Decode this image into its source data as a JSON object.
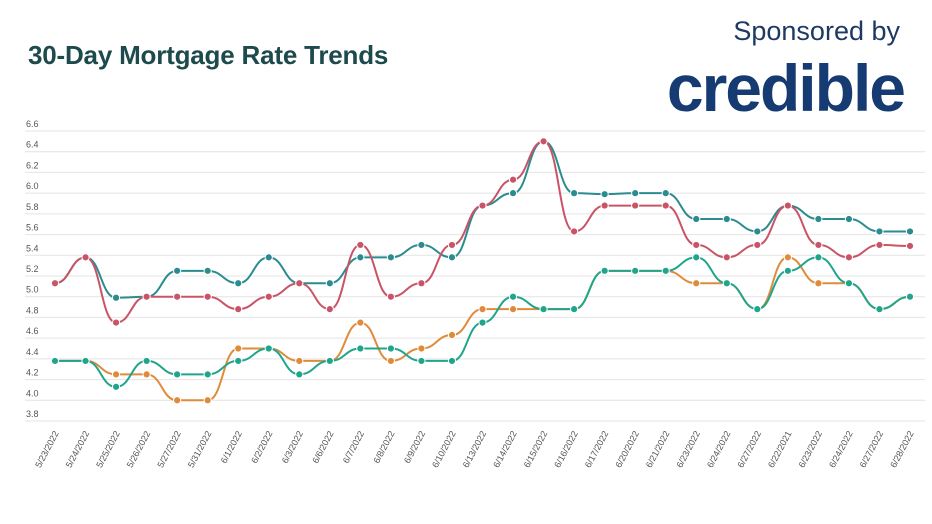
{
  "header": {
    "title": "30-Day Mortgage Rate Trends",
    "sponsor_label": "Sponsored by",
    "sponsor_logo": "credible"
  },
  "colors": {
    "title": "#1d4a4c",
    "brand": "#163a72"
  },
  "chart_data": {
    "type": "line",
    "title": "30-Day Mortgage Rate Trends",
    "xlabel": "",
    "ylabel": "",
    "ylim": [
      3.8,
      6.6
    ],
    "yticks": [
      "6.6",
      "6.4",
      "6.2",
      "6.0",
      "5.8",
      "5.6",
      "5.4",
      "5.2",
      "5.0",
      "4.8",
      "4.6",
      "4.4",
      "4.2",
      "4.0",
      "3.8"
    ],
    "grid": true,
    "legend": "none",
    "categories": [
      "5/23/2022",
      "5/24/2022",
      "5/25/2022",
      "5/26/2022",
      "5/27/2022",
      "5/31/2022",
      "6/1/2022",
      "6/2/2022",
      "6/3/2022",
      "6/6/2022",
      "6/7/2022",
      "6/8/2022",
      "6/9/2022",
      "6/10/2022",
      "6/13/2022",
      "6/14/2022",
      "6/15/2022",
      "6/16/2022",
      "6/17/2022",
      "6/20/2022",
      "6/21/2022",
      "6/23/2022",
      "6/24/2022",
      "6/27/2022",
      "6/22/2021",
      "6/23/2022",
      "6/24/2022",
      "6/27/2022",
      "6/28/2022"
    ],
    "series": [
      {
        "color": "#2a8c8f",
        "values": [
          5.13,
          5.38,
          4.99,
          5.0,
          5.25,
          5.25,
          5.13,
          5.38,
          5.13,
          5.13,
          5.38,
          5.38,
          5.5,
          5.38,
          5.88,
          6.0,
          6.5,
          6.0,
          5.99,
          6.0,
          6.0,
          5.75,
          5.75,
          5.63,
          5.88,
          5.75,
          5.75,
          5.63,
          5.63
        ]
      },
      {
        "color": "#c95468",
        "values": [
          5.13,
          5.38,
          4.75,
          5.0,
          5.0,
          5.0,
          4.88,
          5.0,
          5.13,
          4.88,
          5.5,
          5.0,
          5.13,
          5.5,
          5.88,
          6.13,
          6.5,
          5.63,
          5.88,
          5.88,
          5.88,
          5.5,
          5.38,
          5.5,
          5.88,
          5.5,
          5.38,
          5.5,
          5.49
        ]
      },
      {
        "color": "#e08b3a",
        "values": [
          4.38,
          4.38,
          4.25,
          4.25,
          4.0,
          4.0,
          4.5,
          4.5,
          4.38,
          4.38,
          4.75,
          4.38,
          4.5,
          4.63,
          4.88,
          4.88,
          4.88,
          4.88,
          5.25,
          5.25,
          5.25,
          5.13,
          5.13,
          4.88,
          5.38,
          5.13,
          5.13,
          4.88,
          5.0
        ]
      },
      {
        "color": "#20a58c",
        "values": [
          4.38,
          4.38,
          4.13,
          4.38,
          4.25,
          4.25,
          4.38,
          4.5,
          4.25,
          4.38,
          4.5,
          4.5,
          4.38,
          4.38,
          4.75,
          5.0,
          4.88,
          4.88,
          5.25,
          5.25,
          5.25,
          5.38,
          5.13,
          4.88,
          5.25,
          5.38,
          5.13,
          4.88,
          5.0
        ]
      }
    ]
  }
}
